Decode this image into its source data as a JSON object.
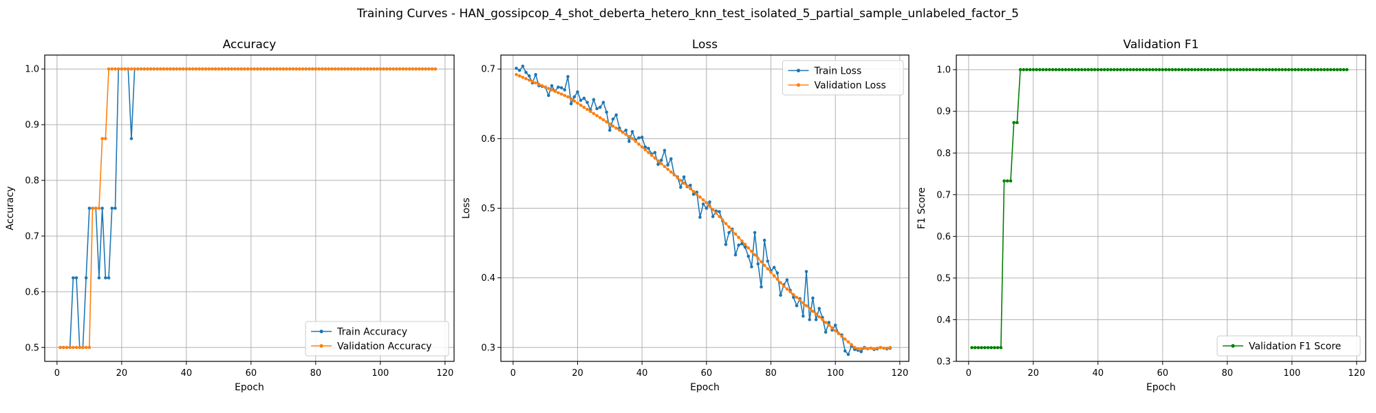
{
  "figure": {
    "title": "Training Curves - HAN_gossipcop_4_shot_deberta_hetero_knn_test_isolated_5_partial_sample_unlabeled_factor_5"
  },
  "colors": {
    "train": "#1f77b4",
    "val": "#ff7f0e",
    "f1": "#008000"
  },
  "chart_data": [
    {
      "type": "line",
      "title": "Accuracy",
      "xlabel": "Epoch",
      "ylabel": "Accuracy",
      "xlim": [
        -3.8,
        122.8
      ],
      "ylim": [
        0.475,
        1.025
      ],
      "xticks": [
        0,
        20,
        40,
        60,
        80,
        100,
        120
      ],
      "yticks": [
        0.5,
        0.6,
        0.7,
        0.8,
        0.9,
        1.0
      ],
      "legend": "lower-right",
      "grid": true,
      "x": {
        "start": 1,
        "end": 117
      },
      "series": [
        {
          "name": "Train Accuracy",
          "color": "#1f77b4",
          "values": [
            0.5,
            0.5,
            0.5,
            0.5,
            0.625,
            0.625,
            0.5,
            0.5,
            0.625,
            0.75,
            0.75,
            0.75,
            0.625,
            0.75,
            0.625,
            0.625,
            0.75,
            0.75,
            1.0,
            1.0,
            1.0,
            1.0,
            0.875,
            1.0,
            1.0,
            1.0,
            1.0,
            1.0,
            1.0,
            1.0,
            1.0,
            1.0,
            1.0,
            1.0,
            1.0,
            1.0,
            1.0,
            1.0,
            1.0,
            1.0,
            1.0,
            1.0,
            1.0,
            1.0,
            1.0,
            1.0,
            1.0,
            1.0,
            1.0,
            1.0,
            1.0,
            1.0,
            1.0,
            1.0,
            1.0,
            1.0,
            1.0,
            1.0,
            1.0,
            1.0,
            1.0,
            1.0,
            1.0,
            1.0,
            1.0,
            1.0,
            1.0,
            1.0,
            1.0,
            1.0,
            1.0,
            1.0,
            1.0,
            1.0,
            1.0,
            1.0,
            1.0,
            1.0,
            1.0,
            1.0,
            1.0,
            1.0,
            1.0,
            1.0,
            1.0,
            1.0,
            1.0,
            1.0,
            1.0,
            1.0,
            1.0,
            1.0,
            1.0,
            1.0,
            1.0,
            1.0,
            1.0,
            1.0,
            1.0,
            1.0,
            1.0,
            1.0,
            1.0,
            1.0,
            1.0,
            1.0,
            1.0,
            1.0,
            1.0,
            1.0,
            1.0,
            1.0,
            1.0,
            1.0,
            1.0,
            1.0,
            1.0
          ]
        },
        {
          "name": "Validation Accuracy",
          "color": "#ff7f0e",
          "values": [
            0.5,
            0.5,
            0.5,
            0.5,
            0.5,
            0.5,
            0.5,
            0.5,
            0.5,
            0.5,
            0.75,
            0.75,
            0.75,
            0.875,
            0.875,
            1.0,
            1.0,
            1.0,
            1.0,
            1.0,
            1.0,
            1.0,
            1.0,
            1.0,
            1.0,
            1.0,
            1.0,
            1.0,
            1.0,
            1.0,
            1.0,
            1.0,
            1.0,
            1.0,
            1.0,
            1.0,
            1.0,
            1.0,
            1.0,
            1.0,
            1.0,
            1.0,
            1.0,
            1.0,
            1.0,
            1.0,
            1.0,
            1.0,
            1.0,
            1.0,
            1.0,
            1.0,
            1.0,
            1.0,
            1.0,
            1.0,
            1.0,
            1.0,
            1.0,
            1.0,
            1.0,
            1.0,
            1.0,
            1.0,
            1.0,
            1.0,
            1.0,
            1.0,
            1.0,
            1.0,
            1.0,
            1.0,
            1.0,
            1.0,
            1.0,
            1.0,
            1.0,
            1.0,
            1.0,
            1.0,
            1.0,
            1.0,
            1.0,
            1.0,
            1.0,
            1.0,
            1.0,
            1.0,
            1.0,
            1.0,
            1.0,
            1.0,
            1.0,
            1.0,
            1.0,
            1.0,
            1.0,
            1.0,
            1.0,
            1.0,
            1.0,
            1.0,
            1.0,
            1.0,
            1.0,
            1.0,
            1.0,
            1.0,
            1.0,
            1.0,
            1.0,
            1.0,
            1.0,
            1.0,
            1.0,
            1.0,
            1.0
          ]
        }
      ]
    },
    {
      "type": "line",
      "title": "Loss",
      "xlabel": "Epoch",
      "ylabel": "Loss",
      "xlim": [
        -3.8,
        122.8
      ],
      "ylim": [
        0.28,
        0.72
      ],
      "xticks": [
        0,
        20,
        40,
        60,
        80,
        100,
        120
      ],
      "yticks": [
        0.3,
        0.4,
        0.5,
        0.6,
        0.7
      ],
      "legend": "upper-right",
      "grid": true,
      "x": {
        "start": 1,
        "end": 117
      },
      "series": [
        {
          "name": "Train Loss",
          "color": "#1f77b4",
          "values": [
            0.701,
            0.698,
            0.704,
            0.695,
            0.69,
            0.68,
            0.692,
            0.676,
            0.675,
            0.674,
            0.662,
            0.676,
            0.668,
            0.674,
            0.673,
            0.67,
            0.689,
            0.65,
            0.66,
            0.667,
            0.655,
            0.658,
            0.652,
            0.641,
            0.656,
            0.643,
            0.645,
            0.652,
            0.638,
            0.612,
            0.628,
            0.634,
            0.615,
            0.609,
            0.612,
            0.596,
            0.61,
            0.598,
            0.601,
            0.602,
            0.588,
            0.586,
            0.578,
            0.58,
            0.563,
            0.569,
            0.583,
            0.562,
            0.571,
            0.548,
            0.545,
            0.53,
            0.545,
            0.531,
            0.533,
            0.52,
            0.523,
            0.487,
            0.506,
            0.5,
            0.509,
            0.488,
            0.496,
            0.495,
            0.482,
            0.448,
            0.465,
            0.47,
            0.433,
            0.447,
            0.449,
            0.444,
            0.431,
            0.416,
            0.465,
            0.42,
            0.387,
            0.454,
            0.424,
            0.41,
            0.415,
            0.407,
            0.375,
            0.39,
            0.397,
            0.382,
            0.372,
            0.36,
            0.37,
            0.345,
            0.409,
            0.34,
            0.371,
            0.34,
            0.356,
            0.343,
            0.322,
            0.336,
            0.325,
            0.332,
            0.32,
            0.318,
            0.295,
            0.29,
            0.302,
            0.297,
            0.296,
            0.294,
            0.3,
            0.298,
            0.299,
            0.297,
            0.298,
            0.3,
            0.299,
            0.298,
            0.299
          ]
        },
        {
          "name": "Validation Loss",
          "color": "#ff7f0e",
          "values": [
            0.692,
            0.69,
            0.688,
            0.686,
            0.684,
            0.682,
            0.68,
            0.678,
            0.676,
            0.674,
            0.672,
            0.67,
            0.668,
            0.666,
            0.664,
            0.662,
            0.66,
            0.657,
            0.654,
            0.651,
            0.648,
            0.645,
            0.642,
            0.639,
            0.636,
            0.633,
            0.63,
            0.627,
            0.624,
            0.621,
            0.618,
            0.615,
            0.612,
            0.609,
            0.606,
            0.603,
            0.6,
            0.596,
            0.592,
            0.588,
            0.584,
            0.58,
            0.576,
            0.572,
            0.568,
            0.564,
            0.56,
            0.556,
            0.552,
            0.548,
            0.544,
            0.54,
            0.536,
            0.532,
            0.528,
            0.524,
            0.52,
            0.516,
            0.512,
            0.508,
            0.503,
            0.498,
            0.493,
            0.488,
            0.483,
            0.478,
            0.473,
            0.468,
            0.463,
            0.458,
            0.453,
            0.448,
            0.443,
            0.438,
            0.433,
            0.428,
            0.423,
            0.418,
            0.413,
            0.408,
            0.403,
            0.398,
            0.393,
            0.388,
            0.384,
            0.38,
            0.376,
            0.372,
            0.368,
            0.364,
            0.36,
            0.356,
            0.352,
            0.348,
            0.344,
            0.34,
            0.336,
            0.332,
            0.328,
            0.324,
            0.32,
            0.316,
            0.312,
            0.308,
            0.304,
            0.3,
            0.298,
            0.298,
            0.299,
            0.298,
            0.299,
            0.298,
            0.299,
            0.3,
            0.299,
            0.299,
            0.3
          ]
        }
      ]
    },
    {
      "type": "line",
      "title": "Validation F1",
      "xlabel": "Epoch",
      "ylabel": "F1 Score",
      "xlim": [
        -3.8,
        122.8
      ],
      "ylim": [
        0.3,
        1.035
      ],
      "xticks": [
        0,
        20,
        40,
        60,
        80,
        100,
        120
      ],
      "yticks": [
        0.3,
        0.4,
        0.5,
        0.6,
        0.7,
        0.8,
        0.9,
        1.0
      ],
      "legend": "lower-right",
      "grid": true,
      "x": {
        "start": 1,
        "end": 117
      },
      "series": [
        {
          "name": "Validation F1 Score",
          "color": "#008000",
          "values": [
            0.333,
            0.333,
            0.333,
            0.333,
            0.333,
            0.333,
            0.333,
            0.333,
            0.333,
            0.333,
            0.733,
            0.733,
            0.733,
            0.873,
            0.873,
            1.0,
            1.0,
            1.0,
            1.0,
            1.0,
            1.0,
            1.0,
            1.0,
            1.0,
            1.0,
            1.0,
            1.0,
            1.0,
            1.0,
            1.0,
            1.0,
            1.0,
            1.0,
            1.0,
            1.0,
            1.0,
            1.0,
            1.0,
            1.0,
            1.0,
            1.0,
            1.0,
            1.0,
            1.0,
            1.0,
            1.0,
            1.0,
            1.0,
            1.0,
            1.0,
            1.0,
            1.0,
            1.0,
            1.0,
            1.0,
            1.0,
            1.0,
            1.0,
            1.0,
            1.0,
            1.0,
            1.0,
            1.0,
            1.0,
            1.0,
            1.0,
            1.0,
            1.0,
            1.0,
            1.0,
            1.0,
            1.0,
            1.0,
            1.0,
            1.0,
            1.0,
            1.0,
            1.0,
            1.0,
            1.0,
            1.0,
            1.0,
            1.0,
            1.0,
            1.0,
            1.0,
            1.0,
            1.0,
            1.0,
            1.0,
            1.0,
            1.0,
            1.0,
            1.0,
            1.0,
            1.0,
            1.0,
            1.0,
            1.0,
            1.0,
            1.0,
            1.0,
            1.0,
            1.0,
            1.0,
            1.0,
            1.0,
            1.0,
            1.0,
            1.0,
            1.0,
            1.0,
            1.0,
            1.0,
            1.0,
            1.0,
            1.0
          ]
        }
      ]
    }
  ]
}
